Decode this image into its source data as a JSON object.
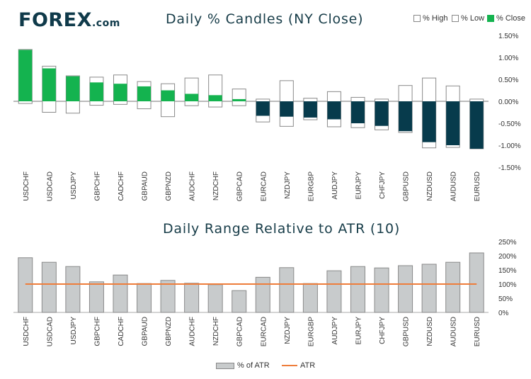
{
  "brand": {
    "name": "FOREX",
    "suffix": ".com"
  },
  "colors": {
    "positive": "#14b34f",
    "negative": "#073b4c",
    "range": "#c8cbcc",
    "atr": "#ee7d3b"
  },
  "legend_top": {
    "high": "% High",
    "low": "% Low",
    "close": "% Close"
  },
  "legend_bottom": {
    "pct_atr": "% of ATR",
    "atr": "ATR"
  },
  "chart_data": [
    {
      "type": "candlestick",
      "title": "Daily % Candles (NY Close)",
      "categories": [
        "USDCHF",
        "USDCAD",
        "USDJPY",
        "GBPCHF",
        "CADCHF",
        "GBPAUD",
        "GBPNZD",
        "AUDCHF",
        "NZDCHF",
        "GBPCAD",
        "EURCAD",
        "NZDJPY",
        "EURGBP",
        "AUDJPY",
        "EURJPY",
        "CHFJPY",
        "GBPUSD",
        "NZDUSD",
        "AUDUSD",
        "EURUSD"
      ],
      "series": [
        {
          "name": "% High",
          "values": [
            1.18,
            0.8,
            0.58,
            0.55,
            0.6,
            0.45,
            0.4,
            0.53,
            0.6,
            0.28,
            0.05,
            0.47,
            0.07,
            0.22,
            0.09,
            0.05,
            0.36,
            0.53,
            0.35,
            0.05
          ]
        },
        {
          "name": "% Low",
          "values": [
            -0.05,
            -0.25,
            -0.27,
            -0.09,
            -0.07,
            -0.17,
            -0.35,
            -0.1,
            -0.13,
            -0.1,
            -0.47,
            -0.57,
            -0.42,
            -0.58,
            -0.6,
            -0.65,
            -0.71,
            -1.06,
            -1.05,
            -1.08
          ]
        },
        {
          "name": "% Close",
          "values": [
            1.17,
            0.75,
            0.57,
            0.43,
            0.4,
            0.34,
            0.25,
            0.17,
            0.14,
            0.05,
            -0.33,
            -0.35,
            -0.37,
            -0.41,
            -0.5,
            -0.56,
            -0.68,
            -0.93,
            -1.0,
            -1.08
          ]
        }
      ],
      "yticks": [
        "1.50%",
        "1.00%",
        "0.50%",
        "0.00%",
        "-0.50%",
        "-1.00%",
        "-1.50%"
      ],
      "ylim": [
        -1.5,
        1.5
      ]
    },
    {
      "type": "bar",
      "title": "Daily Range Relative to ATR (10)",
      "categories": [
        "USDCHF",
        "USDCAD",
        "USDJPY",
        "GBPCHF",
        "CADCHF",
        "GBPAUD",
        "GBPNZD",
        "AUDCHF",
        "NZDCHF",
        "GBPCAD",
        "EURCAD",
        "NZDJPY",
        "EURGBP",
        "AUDJPY",
        "EURJPY",
        "CHFJPY",
        "GBPUSD",
        "NZDUSD",
        "AUDUSD",
        "EURUSD"
      ],
      "series": [
        {
          "name": "% of ATR",
          "values": [
            193,
            177,
            162,
            108,
            132,
            102,
            113,
            103,
            98,
            77,
            124,
            158,
            102,
            147,
            162,
            157,
            165,
            170,
            177,
            210
          ]
        },
        {
          "name": "ATR",
          "values": [
            100,
            100,
            100,
            100,
            100,
            100,
            100,
            100,
            100,
            100,
            100,
            100,
            100,
            100,
            100,
            100,
            100,
            100,
            100,
            100
          ]
        }
      ],
      "yticks": [
        "250%",
        "200%",
        "150%",
        "100%",
        "50%",
        "0%"
      ],
      "ylim": [
        0,
        250
      ]
    }
  ]
}
